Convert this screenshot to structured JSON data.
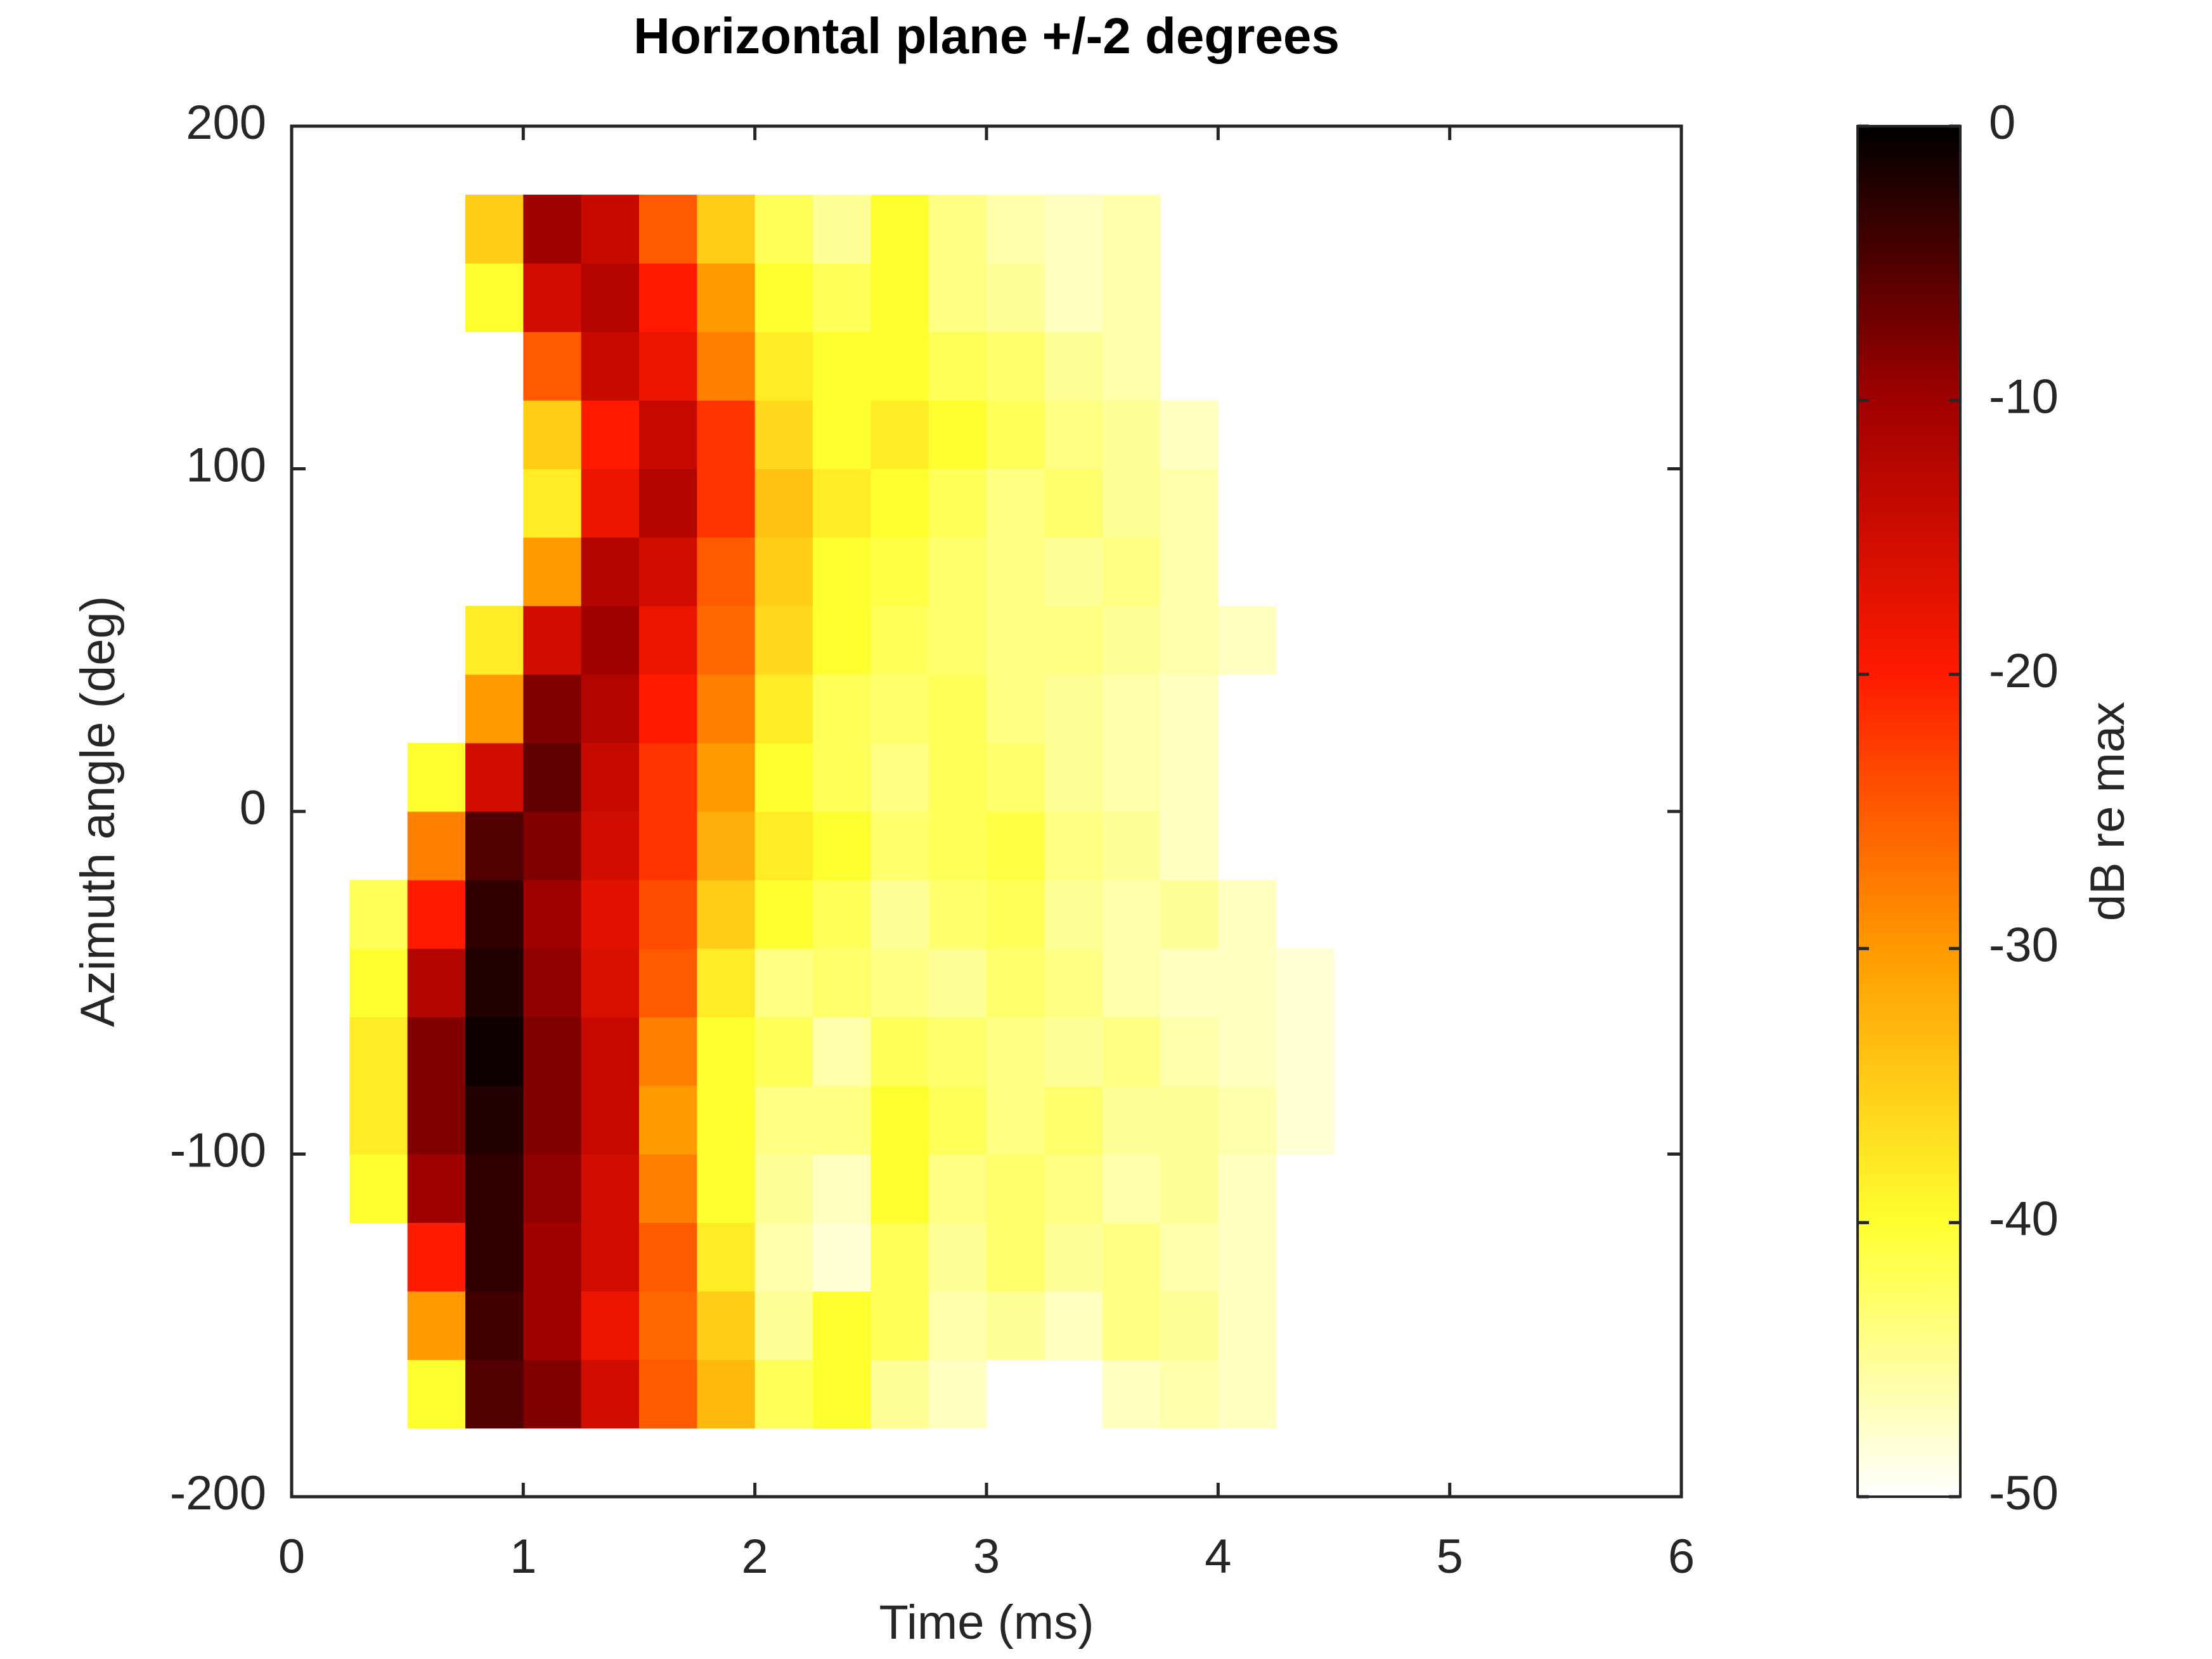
{
  "chart_data": {
    "type": "heatmap",
    "title": "Horizontal plane +/-2 degrees",
    "xlabel": "Time (ms)",
    "ylabel": "Azimuth angle (deg)",
    "colorbar_label": "dB re max",
    "xlim": [
      0,
      6
    ],
    "xticks": [
      0,
      1,
      2,
      3,
      4,
      5,
      6
    ],
    "ylim": [
      -200,
      200
    ],
    "yticks": [
      -200,
      -100,
      0,
      100,
      200
    ],
    "clim": [
      -50,
      0
    ],
    "cticks": [
      -50,
      -40,
      -30,
      -20,
      -10,
      0
    ],
    "colormap": [
      "#ffffff",
      "#ffff30",
      "#ff9a00",
      "#ff1a00",
      "#a00000",
      "#000000"
    ],
    "x": [
      0.375,
      0.625,
      0.875,
      1.125,
      1.375,
      1.625,
      1.875,
      2.125,
      2.375,
      2.625,
      2.875,
      3.125,
      3.375,
      3.625,
      3.875,
      4.125,
      4.375
    ],
    "y": [
      -170,
      -150,
      -130,
      -110,
      -90,
      -70,
      -50,
      -30,
      -10,
      10,
      30,
      50,
      70,
      90,
      110,
      130,
      150,
      170
    ],
    "z": [
      [
        null,
        -40,
        -5,
        -8,
        -15,
        -25,
        -33,
        -42,
        -40,
        -45,
        -47,
        null,
        null,
        -47,
        -46,
        -47,
        null
      ],
      [
        null,
        -30,
        -4,
        -10,
        -18,
        -26,
        -35,
        -45,
        -40,
        -42,
        -46,
        -45,
        -47,
        -44,
        -45,
        -47,
        null
      ],
      [
        null,
        -20,
        -3,
        -10,
        -15,
        -25,
        -38,
        -46,
        -48,
        -42,
        -45,
        -43,
        -45,
        -44,
        -46,
        -47,
        null
      ],
      [
        -40,
        -10,
        -3,
        -9,
        -15,
        -28,
        -40,
        -45,
        -47,
        -40,
        -44,
        -43,
        -44,
        -46,
        -45,
        -47,
        null
      ],
      [
        -38,
        -8,
        -2,
        -8,
        -14,
        -30,
        -40,
        -44,
        -44,
        -40,
        -42,
        -44,
        -43,
        -45,
        -45,
        -46,
        -48
      ],
      [
        -38,
        -8,
        -1,
        -8,
        -14,
        -28,
        -40,
        -42,
        -46,
        -42,
        -43,
        -44,
        -45,
        -44,
        -46,
        -47,
        -48
      ],
      [
        -40,
        -12,
        -2,
        -9,
        -16,
        -25,
        -38,
        -44,
        -43,
        -44,
        -45,
        -43,
        -44,
        -46,
        -47,
        -47,
        -48
      ],
      [
        -42,
        -20,
        -3,
        -10,
        -17,
        -24,
        -35,
        -40,
        -42,
        -45,
        -43,
        -42,
        -45,
        -46,
        -45,
        -47,
        null
      ],
      [
        null,
        -28,
        -5,
        -8,
        -15,
        -22,
        -32,
        -38,
        -40,
        -43,
        -42,
        -41,
        -44,
        -45,
        -47,
        null,
        null
      ],
      [
        null,
        -40,
        -15,
        -6,
        -14,
        -22,
        -30,
        -40,
        -42,
        -44,
        -42,
        -43,
        -45,
        -46,
        -47,
        null,
        null
      ],
      [
        null,
        null,
        -30,
        -8,
        -12,
        -20,
        -28,
        -38,
        -42,
        -43,
        -42,
        -44,
        -45,
        -46,
        -47,
        null,
        null
      ],
      [
        null,
        null,
        -38,
        -15,
        -10,
        -18,
        -26,
        -36,
        -40,
        -42,
        -43,
        -44,
        -44,
        -45,
        -46,
        -47,
        null
      ],
      [
        null,
        null,
        null,
        -30,
        -12,
        -15,
        -25,
        -35,
        -40,
        -41,
        -43,
        -44,
        -45,
        -44,
        -46,
        null,
        null
      ],
      [
        null,
        null,
        null,
        -38,
        -18,
        -12,
        -22,
        -34,
        -38,
        -40,
        -42,
        -44,
        -43,
        -45,
        -46,
        null,
        null
      ],
      [
        null,
        null,
        null,
        -35,
        -20,
        -14,
        -22,
        -36,
        -40,
        -38,
        -40,
        -42,
        -44,
        -45,
        -47,
        null,
        null
      ],
      [
        null,
        null,
        null,
        -25,
        -14,
        -18,
        -28,
        -38,
        -40,
        -40,
        -42,
        -43,
        -45,
        -46,
        null,
        null,
        null
      ],
      [
        null,
        null,
        -40,
        -15,
        -12,
        -20,
        -30,
        -40,
        -42,
        -40,
        -44,
        -45,
        -47,
        -46,
        null,
        null,
        null
      ],
      [
        null,
        null,
        -35,
        -10,
        -14,
        -25,
        -35,
        -42,
        -45,
        -40,
        -44,
        -46,
        -47,
        -46,
        null,
        null,
        null
      ]
    ]
  }
}
